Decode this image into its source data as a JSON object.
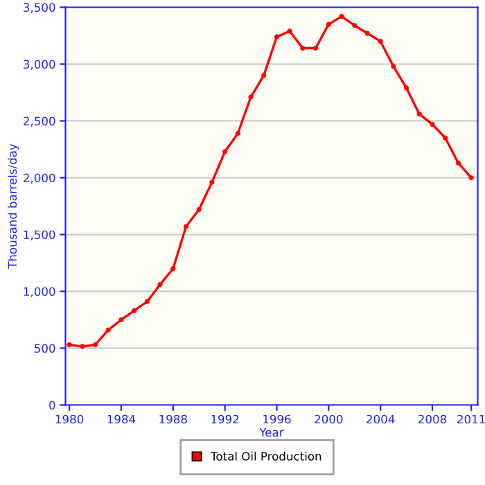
{
  "chart_data": {
    "type": "line",
    "xlabel": "Year",
    "ylabel": "Thousand barrels/day",
    "x": [
      1980,
      1981,
      1982,
      1983,
      1984,
      1985,
      1986,
      1987,
      1988,
      1989,
      1990,
      1991,
      1992,
      1993,
      1994,
      1995,
      1996,
      1997,
      1998,
      1999,
      2000,
      2001,
      2002,
      2003,
      2004,
      2005,
      2006,
      2007,
      2008,
      2009,
      2010,
      2011
    ],
    "series": [
      {
        "name": "Total Oil Production",
        "color": "#ff0000",
        "values": [
          530,
          515,
          530,
          660,
          750,
          830,
          910,
          1060,
          1200,
          1570,
          1720,
          1960,
          2230,
          2390,
          2710,
          2900,
          3240,
          3290,
          3140,
          3140,
          3350,
          3420,
          3340,
          3270,
          3200,
          2980,
          2790,
          2560,
          2470,
          2350,
          2130,
          2000
        ]
      }
    ],
    "xlim": [
      1979.7,
      2011.5
    ],
    "xticks": [
      1980,
      1984,
      1988,
      1992,
      1996,
      2000,
      2004,
      2008,
      2011
    ],
    "ylim": [
      0,
      3500
    ],
    "yticks": [
      {
        "value": 0,
        "label": "0"
      },
      {
        "value": 500,
        "label": "500"
      },
      {
        "value": 1000,
        "label": "1,000"
      },
      {
        "value": 1500,
        "label": "1,500"
      },
      {
        "value": 2000,
        "label": "2,000"
      },
      {
        "value": 2500,
        "label": "2,500"
      },
      {
        "value": 3000,
        "label": "3,000"
      },
      {
        "value": 3500,
        "label": "3,500"
      }
    ],
    "grid": "y",
    "legend": "bottom",
    "marker": "circle",
    "line_style": "solid"
  }
}
